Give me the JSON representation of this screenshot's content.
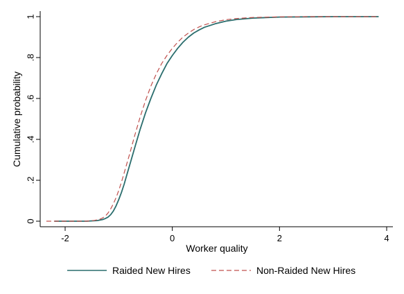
{
  "chart_data": {
    "type": "line",
    "title": "",
    "xlabel": "Worker quality",
    "ylabel": "Cumulative probability",
    "xlim": [
      -2.35,
      4.15
    ],
    "ylim": [
      0,
      1
    ],
    "x_ticks": [
      -2,
      0,
      2,
      4
    ],
    "x_tick_labels": [
      "-2",
      "0",
      "2",
      "4"
    ],
    "y_ticks": [
      0,
      0.2,
      0.4,
      0.6,
      0.8,
      1
    ],
    "y_tick_labels": [
      "0",
      ".2",
      ".4",
      ".6",
      ".8",
      "1"
    ],
    "grid": false,
    "legend_position": "bottom",
    "series": [
      {
        "name": "Raided New Hires",
        "color": "#2a6d6d",
        "style": "solid",
        "x": [
          -2.2,
          -1.6,
          -1.4,
          -1.3,
          -1.25,
          -1.2,
          -1.15,
          -1.1,
          -1.05,
          -1.0,
          -0.95,
          -0.9,
          -0.85,
          -0.8,
          -0.7,
          -0.6,
          -0.5,
          -0.4,
          -0.3,
          -0.2,
          -0.1,
          0.0,
          0.1,
          0.2,
          0.3,
          0.4,
          0.5,
          0.6,
          0.8,
          1.0,
          1.2,
          1.5,
          2.0,
          2.5,
          3.0,
          3.85
        ],
        "y": [
          0.0,
          0.0,
          0.003,
          0.008,
          0.013,
          0.02,
          0.032,
          0.05,
          0.075,
          0.105,
          0.14,
          0.18,
          0.225,
          0.27,
          0.36,
          0.45,
          0.53,
          0.6,
          0.665,
          0.72,
          0.77,
          0.81,
          0.845,
          0.875,
          0.9,
          0.92,
          0.935,
          0.948,
          0.965,
          0.978,
          0.986,
          0.993,
          0.998,
          0.999,
          1.0,
          1.0
        ]
      },
      {
        "name": "Non-Raided New Hires",
        "color": "#c0504d",
        "style": "dashed",
        "x": [
          -2.35,
          -1.6,
          -1.45,
          -1.35,
          -1.3,
          -1.25,
          -1.2,
          -1.15,
          -1.1,
          -1.05,
          -1.0,
          -0.95,
          -0.9,
          -0.85,
          -0.8,
          -0.7,
          -0.6,
          -0.5,
          -0.4,
          -0.3,
          -0.2,
          -0.1,
          0.0,
          0.1,
          0.2,
          0.3,
          0.4,
          0.5,
          0.6,
          0.8,
          1.0,
          1.2,
          1.5,
          2.0,
          2.5,
          3.0,
          3.85
        ],
        "y": [
          0.0,
          0.0,
          0.004,
          0.01,
          0.016,
          0.025,
          0.04,
          0.06,
          0.085,
          0.115,
          0.15,
          0.19,
          0.235,
          0.28,
          0.325,
          0.42,
          0.51,
          0.59,
          0.66,
          0.72,
          0.77,
          0.81,
          0.845,
          0.875,
          0.9,
          0.92,
          0.937,
          0.95,
          0.96,
          0.975,
          0.985,
          0.991,
          0.996,
          0.999,
          1.0,
          1.0,
          1.0
        ]
      }
    ]
  }
}
